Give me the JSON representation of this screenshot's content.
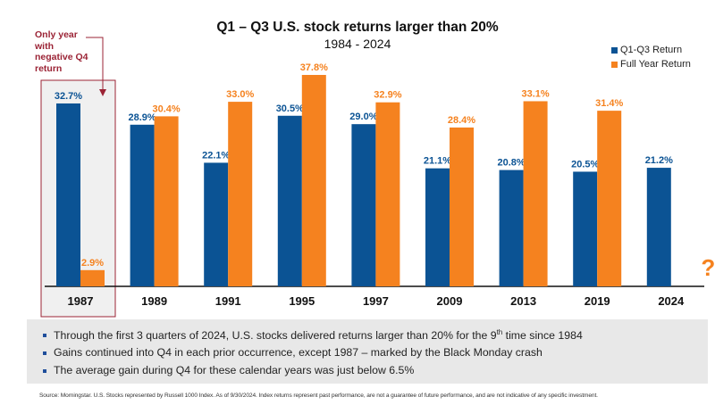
{
  "colors": {
    "q1q3": "#0b5394",
    "full_year": "#f5821f",
    "annotation": "#9b2335",
    "highlight_bg": "#f0f0f0",
    "axis": "#111111"
  },
  "chart_data": {
    "type": "bar",
    "title": "Q1 – Q3 U.S. stock returns larger than 20%",
    "subtitle": "1984 - 2024",
    "xlabel": "",
    "ylabel": "",
    "ylim": [
      0,
      40
    ],
    "grid": false,
    "legend_position": "top-right",
    "categories": [
      "1987",
      "1989",
      "1991",
      "1995",
      "1997",
      "2009",
      "2013",
      "2019",
      "2024"
    ],
    "series": [
      {
        "name": "Q1-Q3 Return",
        "values": [
          32.7,
          28.9,
          22.1,
          30.5,
          29.0,
          21.1,
          20.8,
          20.5,
          21.2
        ],
        "labels": [
          "32.7%",
          "28.9%",
          "22.1%",
          "30.5%",
          "29.0%",
          "21.1%",
          "20.8%",
          "20.5%",
          "21.2%"
        ]
      },
      {
        "name": "Full Year Return",
        "values": [
          2.9,
          30.4,
          33.0,
          37.8,
          32.9,
          28.4,
          33.1,
          31.4,
          null
        ],
        "labels": [
          "2.9%",
          "30.4%",
          "33.0%",
          "37.8%",
          "32.9%",
          "28.4%",
          "33.1%",
          "31.4%",
          "?"
        ]
      }
    ],
    "highlighted_category": "1987",
    "annotations": [
      "Only year with negative Q4 return"
    ]
  },
  "annotation": {
    "lines": [
      "Only year",
      "with",
      "negative Q4",
      "return"
    ]
  },
  "bullets": [
    {
      "pre": "Through the first 3 quarters of 2024, U.S. stocks delivered returns larger than 20% for the 9",
      "sup": "th",
      "post": " time since 1984"
    },
    {
      "pre": "Gains continued into Q4 in each prior occurrence, except 1987 – marked by the Black Monday crash",
      "sup": "",
      "post": ""
    },
    {
      "pre": "The average gain during Q4 for these calendar years was just below 6.5%",
      "sup": "",
      "post": ""
    }
  ],
  "source": "Source: Morningstar. U.S. Stocks represented by Russell 1000 Index. As of 9/30/2024. Index returns represent past performance, are not a guarantee of future performance, and are not indicative of any specific investment."
}
